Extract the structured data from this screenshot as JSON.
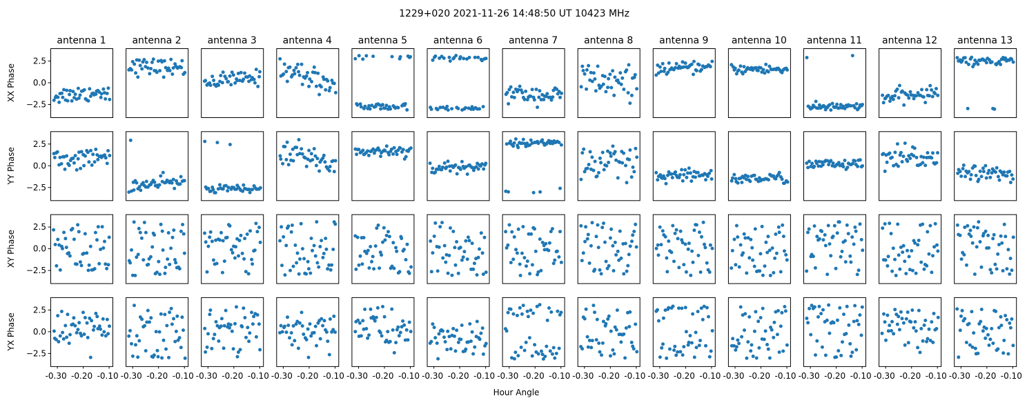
{
  "chart_data": {
    "type": "scatter",
    "title": "1229+020  2021-11-26 14:48:50 UT  10423 MHz",
    "xlabel": "Hour Angle",
    "xlim": [
      -0.327,
      -0.087
    ],
    "ylim": [
      -3.97,
      3.97
    ],
    "x_ticks": [
      -0.3,
      -0.2,
      -0.1
    ],
    "x_tick_labels": [
      "-0.30",
      "-0.20",
      "-0.10"
    ],
    "y_ticks": [
      2.5,
      0.0,
      -2.5
    ],
    "y_tick_labels": [
      "2.5",
      "0.0",
      "−2.5"
    ],
    "x_data_range": [
      -0.315,
      -0.095
    ],
    "points_per_panel": 45,
    "marker_color": "#1f77b4",
    "grid": false,
    "columns": [
      "antenna 1",
      "antenna 2",
      "antenna 3",
      "antenna 4",
      "antenna 5",
      "antenna 6",
      "antenna 7",
      "antenna 8",
      "antenna 9",
      "antenna 10",
      "antenna 11",
      "antenna 12",
      "antenna 13"
    ],
    "rows": [
      {
        "label": "XX Phase",
        "panels": [
          {
            "mode": "trend",
            "start": -1.5,
            "end": -1.0,
            "sd": 0.5
          },
          {
            "mode": "trend",
            "start": 1.9,
            "end": 1.7,
            "sd": 0.5
          },
          {
            "mode": "trend",
            "start": 0.1,
            "end": 0.6,
            "sd": 0.45
          },
          {
            "mode": "trend",
            "start": 1.8,
            "end": -0.4,
            "sd": 0.7
          },
          {
            "mode": "wrap",
            "low": -2.7,
            "high": 3.0,
            "frac_high": 0.25,
            "sd": 0.25
          },
          {
            "mode": "wrap",
            "low": -2.9,
            "high": 2.8,
            "frac_high": 0.5,
            "sd": 0.15
          },
          {
            "mode": "trend",
            "start": -1.2,
            "end": -1.5,
            "sd": 0.5
          },
          {
            "mode": "trend",
            "start": 0.5,
            "end": -0.5,
            "sd": 1.1
          },
          {
            "mode": "trend",
            "start": 1.6,
            "end": 1.8,
            "sd": 0.3
          },
          {
            "mode": "trend",
            "start": 1.6,
            "end": 1.5,
            "sd": 0.3
          },
          {
            "mode": "wrap",
            "low": -2.8,
            "high": 3.0,
            "frac_high": 0.1,
            "sd": 0.2
          },
          {
            "mode": "trend",
            "start": -1.7,
            "end": -1.2,
            "sd": 0.4
          },
          {
            "mode": "wrap",
            "low": -3.0,
            "high": 2.5,
            "frac_high": 0.92,
            "sd": 0.3
          }
        ]
      },
      {
        "label": "YY Phase",
        "panels": [
          {
            "mode": "trend",
            "start": 0.6,
            "end": 1.0,
            "sd": 0.6
          },
          {
            "mode": "trend",
            "start": -2.4,
            "end": -1.8,
            "sd": 0.4
          },
          {
            "mode": "wrap",
            "low": -2.7,
            "high": 2.8,
            "frac_high": 0.1,
            "sd": 0.2
          },
          {
            "mode": "trend",
            "start": 1.8,
            "end": 0.1,
            "sd": 0.7
          },
          {
            "mode": "trend",
            "start": 1.6,
            "end": 1.8,
            "sd": 0.35
          },
          {
            "mode": "trend",
            "start": -0.3,
            "end": -0.1,
            "sd": 0.4
          },
          {
            "mode": "wrap",
            "low": -2.8,
            "high": 2.6,
            "frac_high": 0.8,
            "sd": 0.2
          },
          {
            "mode": "trend",
            "start": 0.2,
            "end": -0.3,
            "sd": 1.3
          },
          {
            "mode": "trend",
            "start": -1.4,
            "end": -1.0,
            "sd": 0.4
          },
          {
            "mode": "trend",
            "start": -1.5,
            "end": -1.4,
            "sd": 0.3
          },
          {
            "mode": "trend",
            "start": 0.2,
            "end": 0.1,
            "sd": 0.3
          },
          {
            "mode": "trend",
            "start": 0.5,
            "end": 1.2,
            "sd": 0.8
          },
          {
            "mode": "trend",
            "start": -0.5,
            "end": -1.2,
            "sd": 0.4
          }
        ]
      },
      {
        "label": "XY Phase",
        "panels": [
          {
            "mode": "uniform"
          },
          {
            "mode": "uniform"
          },
          {
            "mode": "uniform"
          },
          {
            "mode": "uniform"
          },
          {
            "mode": "uniform"
          },
          {
            "mode": "uniform"
          },
          {
            "mode": "uniform"
          },
          {
            "mode": "uniform"
          },
          {
            "mode": "uniform"
          },
          {
            "mode": "uniform"
          },
          {
            "mode": "uniform"
          },
          {
            "mode": "uniform"
          },
          {
            "mode": "uniform"
          }
        ]
      },
      {
        "label": "YX Phase",
        "panels": [
          {
            "mode": "trend",
            "start": 0.6,
            "end": 0.2,
            "sd": 1.1
          },
          {
            "mode": "uniform"
          },
          {
            "mode": "uniform"
          },
          {
            "mode": "trend",
            "start": -0.3,
            "end": 0.2,
            "sd": 1.2
          },
          {
            "mode": "trend",
            "start": 1.2,
            "end": 0.0,
            "sd": 1.4
          },
          {
            "mode": "trend",
            "start": -0.8,
            "end": -1.0,
            "sd": 1.1
          },
          {
            "mode": "wrap",
            "low": -2.0,
            "high": 2.2,
            "frac_high": 0.6,
            "sd": 0.7
          },
          {
            "mode": "uniform"
          },
          {
            "mode": "uniform"
          },
          {
            "mode": "uniform"
          },
          {
            "mode": "uniform"
          },
          {
            "mode": "trend",
            "start": 0.5,
            "end": 0.3,
            "sd": 1.3
          },
          {
            "mode": "uniform"
          }
        ]
      }
    ]
  }
}
